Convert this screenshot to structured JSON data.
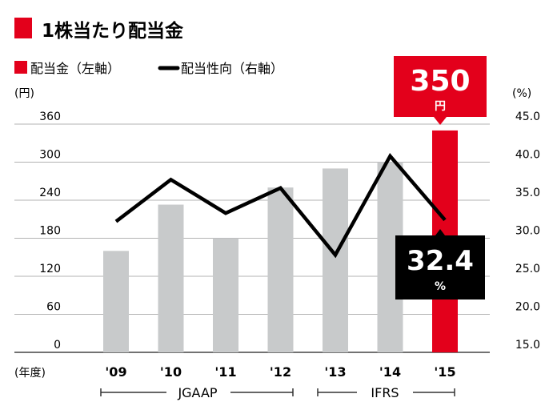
{
  "header": {
    "title": "1株当たり配当金",
    "accent_color": "#e3001b"
  },
  "legend": {
    "bar_label": "配当金（左軸）",
    "line_label": "配当性向（右軸）"
  },
  "axes": {
    "left_unit": "(円)",
    "right_unit": "(%)",
    "x_unit": "(年度)"
  },
  "callouts": {
    "dividend_value": "350",
    "dividend_unit": "円",
    "payout_value": "32.4",
    "payout_unit": "%"
  },
  "segments": {
    "first": "JGAAP",
    "second": "IFRS"
  },
  "chart_data": {
    "type": "bar",
    "title": "1株当たり配当金",
    "categories": [
      "'09",
      "'10",
      "'11",
      "'12",
      "'13",
      "'14",
      "'15"
    ],
    "series": [
      {
        "name": "配当金（左軸）",
        "axis": "left",
        "kind": "bar",
        "values": [
          160,
          233,
          180,
          260,
          290,
          300,
          350
        ],
        "colors": [
          "#c8cacb",
          "#c8cacb",
          "#c8cacb",
          "#c8cacb",
          "#c8cacb",
          "#c8cacb",
          "#e3001b"
        ]
      },
      {
        "name": "配当性向（右軸）",
        "axis": "right",
        "kind": "line",
        "values": [
          32.2,
          37.7,
          33.3,
          36.6,
          27.8,
          40.8,
          32.4
        ],
        "color": "#000000"
      }
    ],
    "left_ticks": [
      "0",
      "60",
      "120",
      "180",
      "240",
      "300",
      "360"
    ],
    "right_ticks": [
      "15.0",
      "20.0",
      "25.0",
      "30.0",
      "35.0",
      "40.0",
      "45.0"
    ],
    "ylim_left": [
      0,
      360
    ],
    "ylim_right": [
      15,
      45
    ],
    "grid": true,
    "legend_position": "top-left"
  }
}
